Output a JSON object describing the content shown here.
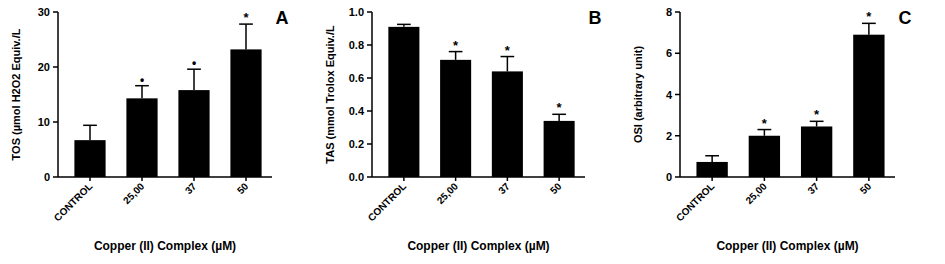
{
  "chart_data": [
    {
      "type": "bar",
      "title": "A",
      "y_label": "TOS (µmol H2O2 Equiv./L",
      "x_label": "Copper (II) Complex (µM)",
      "categories": [
        "CONTROL",
        "25,00",
        "37",
        "50"
      ],
      "values": [
        6.7,
        14.3,
        15.8,
        23.2
      ],
      "errors": [
        2.7,
        2.3,
        3.8,
        4.6
      ],
      "significance": [
        null,
        "•",
        "•",
        "*"
      ],
      "color": "#000000",
      "ylim": [
        0,
        30
      ],
      "yticks": [
        0,
        10,
        20,
        30
      ]
    },
    {
      "type": "bar",
      "title": "B",
      "y_label": "TAS (mmol Trolox Equiv./L",
      "x_label": "Copper (II) Complex (µM)",
      "categories": [
        "CONTROL",
        "25,00",
        "37",
        "50"
      ],
      "values": [
        0.91,
        0.71,
        0.64,
        0.34
      ],
      "errors": [
        0.015,
        0.05,
        0.09,
        0.04
      ],
      "significance": [
        null,
        "*",
        "*",
        "*"
      ],
      "color": "#000000",
      "ylim": [
        0,
        1.0
      ],
      "yticks": [
        {
          "value": 0,
          "label": "0.0"
        },
        0.2,
        0.4,
        0.6,
        0.8,
        {
          "value": 1,
          "label": "1.0"
        }
      ]
    },
    {
      "type": "bar",
      "title": "C",
      "y_label": "OSI (arbitrary unit)",
      "x_label": "Copper (II) Complex (µM)",
      "categories": [
        "CONTROL",
        "25,00",
        "37",
        "50"
      ],
      "values": [
        0.73,
        2.0,
        2.45,
        6.9
      ],
      "errors": [
        0.3,
        0.3,
        0.25,
        0.55
      ],
      "significance": [
        null,
        "*",
        "*",
        "*"
      ],
      "color": "#000000",
      "ylim": [
        0,
        8
      ],
      "yticks": [
        0,
        2,
        4,
        6,
        8
      ]
    }
  ]
}
